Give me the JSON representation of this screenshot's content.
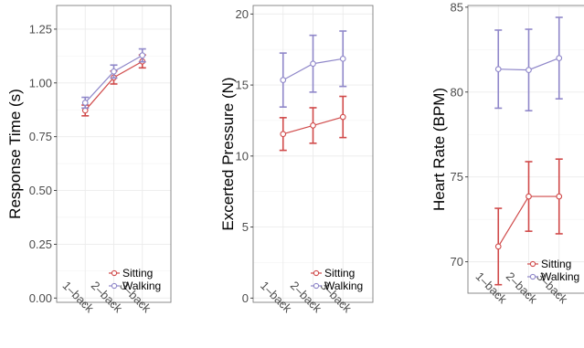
{
  "colors": {
    "sitting": "#d04a4a",
    "walking": "#8f87c9",
    "grid": "#ebebeb",
    "panel_border": "#7f7f7f"
  },
  "chart_data": [
    {
      "type": "line",
      "ylabel": "Response Time (s)",
      "categories": [
        "1–back",
        "2–back",
        "3–back"
      ],
      "yticks": [
        "0.00",
        "0.25",
        "0.50",
        "0.75",
        "1.00",
        "1.25"
      ],
      "ytick_values": [
        0,
        0.25,
        0.5,
        0.75,
        1.0,
        1.25
      ],
      "ylim": [
        -0.02,
        1.36
      ],
      "grid": true,
      "legend_position": "bottom-right",
      "series": [
        {
          "name": "Sitting",
          "color": "#d04a4a",
          "values": [
            0.872,
            1.025,
            1.1
          ],
          "err": [
            0.025,
            0.03,
            0.03
          ]
        },
        {
          "name": "Walking",
          "color": "#8f87c9",
          "values": [
            0.908,
            1.053,
            1.128
          ],
          "err": [
            0.025,
            0.03,
            0.03
          ]
        }
      ]
    },
    {
      "type": "line",
      "ylabel": "Excerted Pressure (N)",
      "categories": [
        "1–back",
        "2–back",
        "3–back"
      ],
      "yticks": [
        "0",
        "5",
        "10",
        "15",
        "20"
      ],
      "ytick_values": [
        0,
        5,
        10,
        15,
        20
      ],
      "ylim": [
        -0.3,
        20.6
      ],
      "grid": true,
      "legend_position": "bottom-right",
      "series": [
        {
          "name": "Sitting",
          "color": "#d04a4a",
          "values": [
            11.55,
            12.15,
            12.75
          ],
          "err": [
            1.15,
            1.25,
            1.45
          ]
        },
        {
          "name": "Walking",
          "color": "#8f87c9",
          "values": [
            15.35,
            16.5,
            16.85
          ],
          "err": [
            1.9,
            2.0,
            1.95
          ]
        }
      ]
    },
    {
      "type": "line",
      "ylabel": "Heart Rate (BPM)",
      "categories": [
        "1–back",
        "2–back",
        "3–back"
      ],
      "yticks": [
        "70",
        "75",
        "80",
        "85"
      ],
      "ytick_values": [
        70,
        75,
        80,
        85
      ],
      "ylim": [
        68.15,
        85.1
      ],
      "grid": true,
      "legend_position": "bottom-right",
      "series": [
        {
          "name": "Sitting",
          "color": "#d04a4a",
          "values": [
            70.9,
            73.85,
            73.85
          ],
          "err": [
            2.25,
            2.05,
            2.2
          ]
        },
        {
          "name": "Walking",
          "color": "#8f87c9",
          "values": [
            81.35,
            81.3,
            82.0
          ],
          "err": [
            2.3,
            2.4,
            2.4
          ]
        }
      ]
    }
  ]
}
